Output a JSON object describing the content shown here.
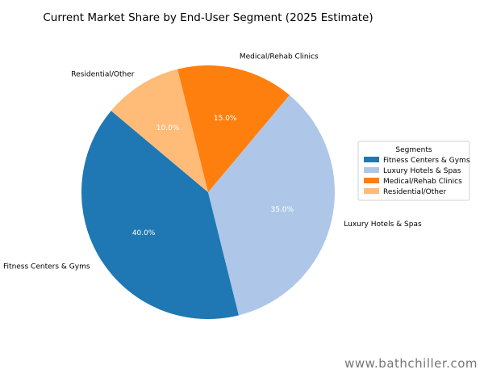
{
  "chart_data": {
    "type": "pie",
    "title": "Current Market Share by End-User Segment (2025 Estimate)",
    "categories": [
      "Fitness Centers & Gyms",
      "Luxury Hotels & Spas",
      "Medical/Rehab Clinics",
      "Residential/Other"
    ],
    "values": [
      40.0,
      35.0,
      15.0,
      10.0
    ],
    "value_labels": [
      "40.0%",
      "35.0%",
      "15.0%",
      "10.0%"
    ],
    "colors": [
      "#1f77b4",
      "#aec7e8",
      "#ff7f0e",
      "#ffbb78"
    ],
    "start_angle_deg": 140,
    "direction": "counterclockwise",
    "legend": {
      "title": "Segments",
      "placement": "right"
    }
  },
  "watermark": "www.bathchiller.com"
}
